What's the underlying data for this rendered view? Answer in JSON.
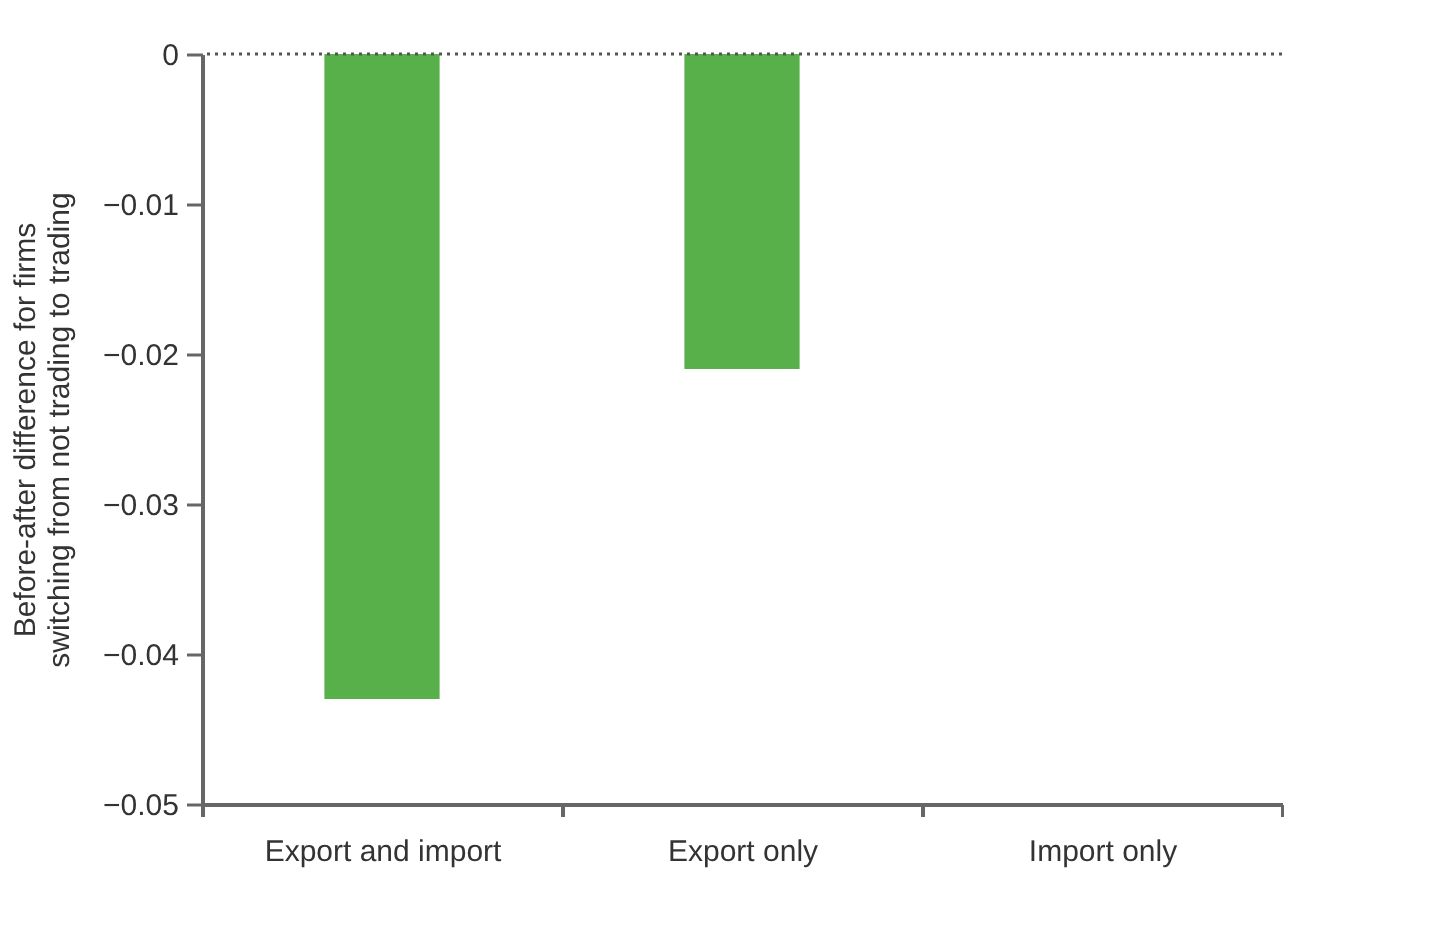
{
  "chart_data": {
    "type": "bar",
    "ylabel": "Before-after difference for firms\nswitching from not trading to trading",
    "categories": [
      "Export and import",
      "Export only",
      "Import only"
    ],
    "values": [
      -0.043,
      -0.021,
      0
    ],
    "color": "#58b04a",
    "ylim": [
      -0.05,
      0
    ],
    "yticks": [
      0,
      -0.01,
      -0.02,
      -0.03,
      -0.04,
      -0.05
    ],
    "grid": false,
    "ref_lines": [
      {
        "axis": "y",
        "value": 0,
        "line_style": "dotted",
        "color": "#555555"
      }
    ]
  }
}
